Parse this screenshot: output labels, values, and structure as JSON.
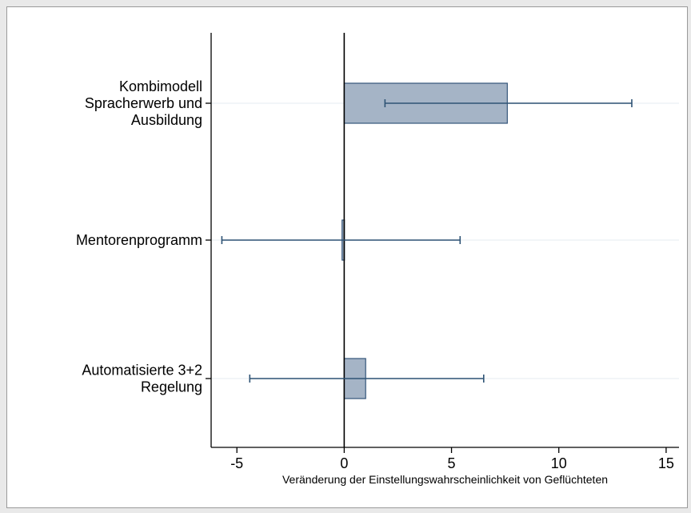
{
  "chart_data": {
    "type": "bar",
    "orientation": "horizontal",
    "categories": [
      [
        "Kombimodell",
        "Spracherwerb und",
        "Ausbildung"
      ],
      [
        "Mentorenprogramm"
      ],
      [
        "Automatisierte 3+2",
        "Regelung"
      ]
    ],
    "values": [
      7.6,
      -0.1,
      1.0
    ],
    "ci_low": [
      1.9,
      -5.7,
      -4.4
    ],
    "ci_high": [
      13.4,
      5.4,
      6.5
    ],
    "xlabel": "Veränderung der Einstellungswahrscheinlichkeit von Geflüchteten",
    "xlim": [
      -6.2,
      15.6
    ],
    "xticks": [
      -5,
      0,
      5,
      10,
      15
    ],
    "grid": true,
    "colors": {
      "bar_fill": "#a5b4c6",
      "bar_stroke": "#34557a",
      "errorbar": "#2e5375",
      "grid": "#eef2f5",
      "axis": "#000000"
    }
  }
}
